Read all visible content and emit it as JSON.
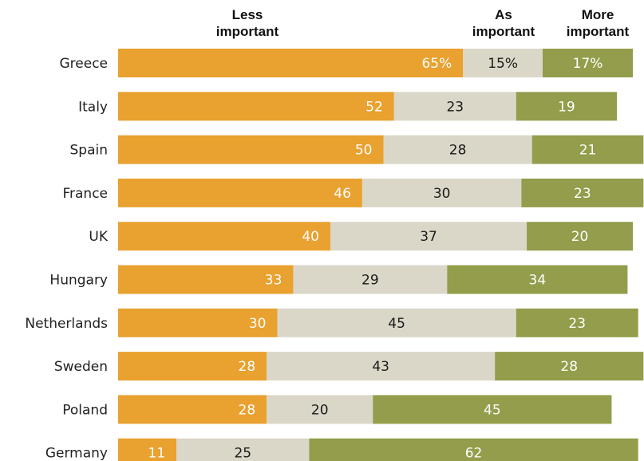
{
  "chart_data": {
    "type": "bar",
    "orientation": "horizontal",
    "stacked": true,
    "categories": [
      "Greece",
      "Italy",
      "Spain",
      "France",
      "UK",
      "Hungary",
      "Netherlands",
      "Sweden",
      "Poland",
      "Germany"
    ],
    "series": [
      {
        "name": "Less important",
        "legend_lines": [
          "Less",
          "important"
        ],
        "values": [
          65,
          52,
          50,
          46,
          40,
          33,
          30,
          28,
          28,
          11
        ],
        "labels": [
          "65%",
          "52",
          "50",
          "46",
          "40",
          "33",
          "30",
          "28",
          "28",
          "11"
        ],
        "color": "#E9A12F",
        "label_color": "#FFFFFF"
      },
      {
        "name": "As important",
        "legend_lines": [
          "As",
          "important"
        ],
        "values": [
          15,
          23,
          28,
          30,
          37,
          29,
          45,
          43,
          20,
          25
        ],
        "labels": [
          "15%",
          "23",
          "28",
          "30",
          "37",
          "29",
          "45",
          "43",
          "20",
          "25"
        ],
        "color": "#DAD7C8",
        "label_color": "#1A1A1A"
      },
      {
        "name": "More important",
        "legend_lines": [
          "More",
          "important"
        ],
        "values": [
          17,
          19,
          21,
          23,
          20,
          34,
          23,
          28,
          45,
          62
        ],
        "labels": [
          "17%",
          "19",
          "21",
          "23",
          "20",
          "34",
          "23",
          "28",
          "45",
          "62"
        ],
        "color": "#939D4B",
        "label_color": "#FFFFFF"
      }
    ],
    "xlim": [
      0,
      100
    ],
    "grid": false,
    "legend": "top"
  }
}
